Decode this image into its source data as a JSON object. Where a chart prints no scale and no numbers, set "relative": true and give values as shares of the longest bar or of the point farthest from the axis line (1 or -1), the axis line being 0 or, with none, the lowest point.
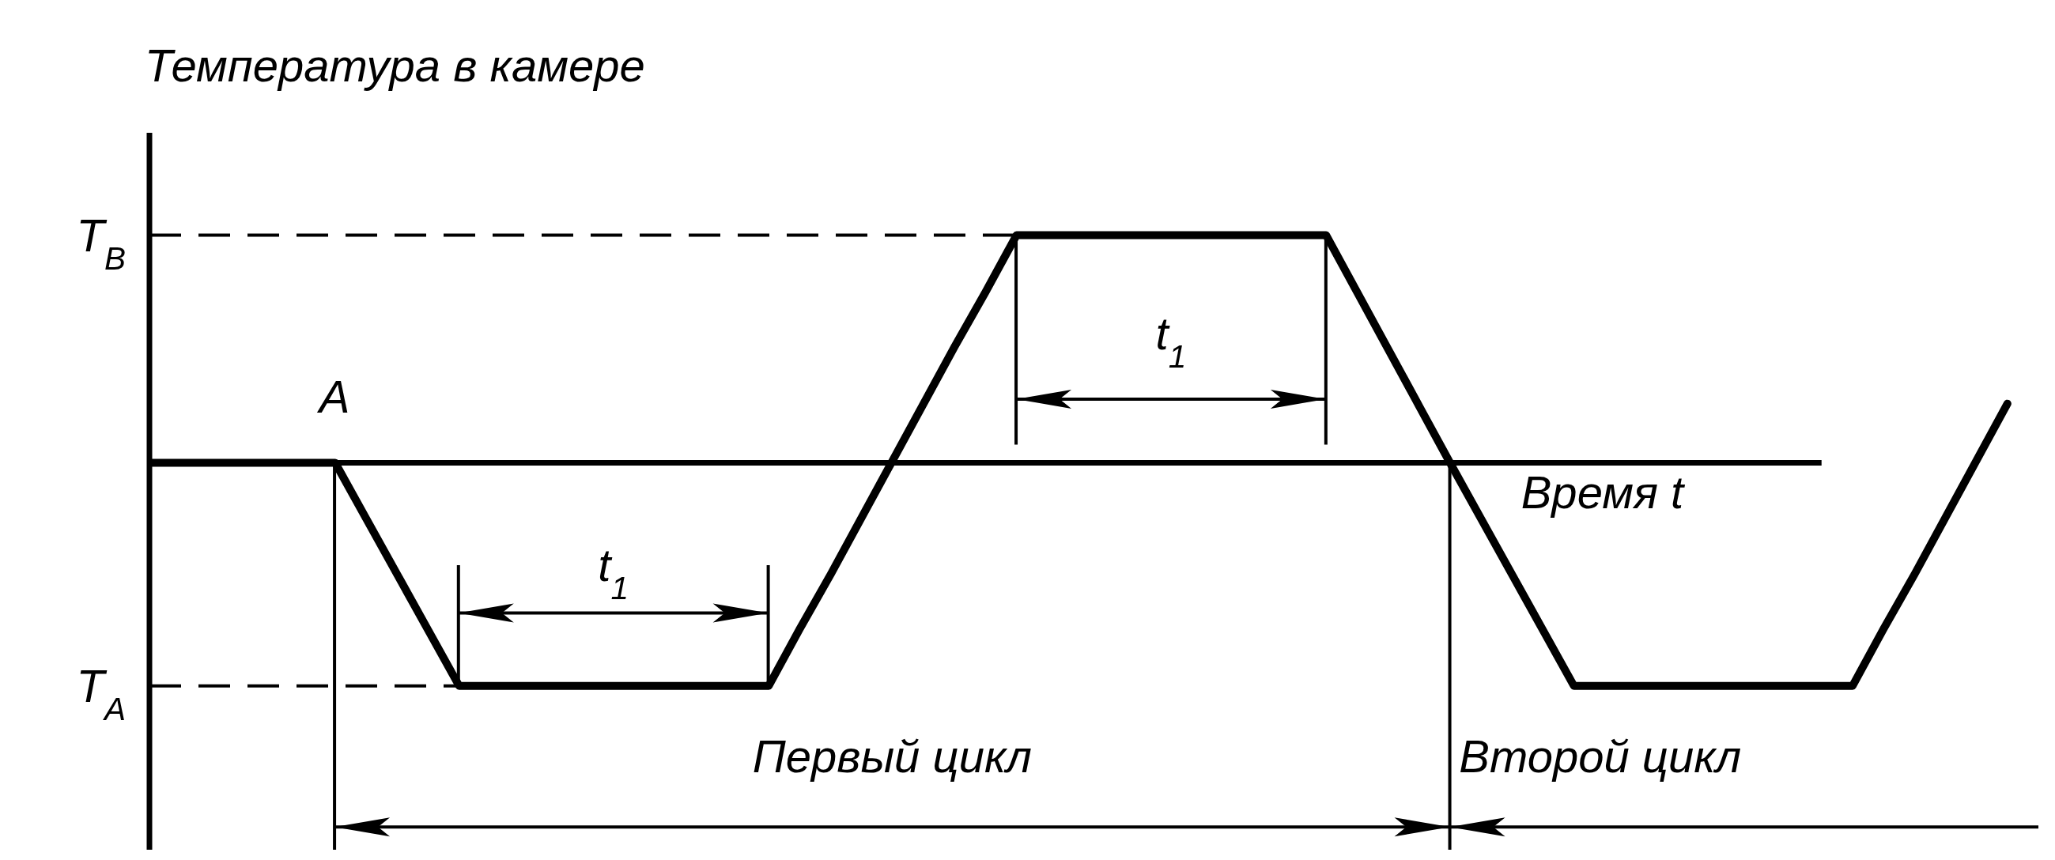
{
  "chart_data": {
    "type": "line",
    "relative": true,
    "ylabel": "Температура в камере",
    "xlabel": "Время t",
    "marker": "none",
    "line_style": "solid",
    "categories": [
      null,
      null,
      null,
      null,
      null,
      null,
      null,
      null,
      null,
      null,
      null,
      null,
      null,
      null,
      null,
      null,
      null,
      null,
      null,
      null,
      null,
      null,
      null,
      null,
      null,
      null,
      null,
      null,
      null,
      null,
      null,
      null,
      null,
      null,
      null,
      null,
      null,
      null,
      null,
      null,
      null,
      null,
      null,
      null,
      null,
      null,
      null,
      null,
      null,
      null,
      null,
      null,
      null,
      null,
      null,
      null,
      null,
      null,
      null,
      null,
      null
    ],
    "series": [
      {
        "color": "#000000",
        "values": [
          0,
          0,
          0,
          0,
          0,
          0,
          0,
          -0.245,
          -0.49,
          -0.735,
          -0.98,
          -0.98,
          -0.98,
          -0.98,
          -0.98,
          -0.98,
          -0.98,
          -0.98,
          -0.98,
          -0.98,
          -0.98,
          -0.73,
          -0.49,
          -0.24,
          0.01,
          0.26,
          0.51,
          0.75,
          1,
          1,
          1,
          1,
          1,
          1,
          1,
          1,
          1,
          1,
          1,
          0.75,
          0.5,
          0.25,
          0,
          -0.245,
          -0.49,
          -0.735,
          -0.98,
          -0.98,
          -0.98,
          -0.98,
          -0.98,
          -0.98,
          -0.98,
          -0.98,
          -0.98,
          -0.98,
          -0.73,
          -0.49,
          -0.24,
          0.01,
          0.26
        ]
      }
    ],
    "ref_lines": [
      {
        "axis": "y",
        "value": 1,
        "label": "T$_{B}$",
        "line_style": "dashed",
        "color": "#000000"
      },
      {
        "axis": "y",
        "value": -0.98,
        "label": "T$_{A}$",
        "line_style": "dashed",
        "color": "#000000"
      }
    ],
    "annotations": [
      "A",
      "t$_{1}$",
      "t$_{1}$",
      "Первый цикл",
      "Второй цикл"
    ]
  }
}
